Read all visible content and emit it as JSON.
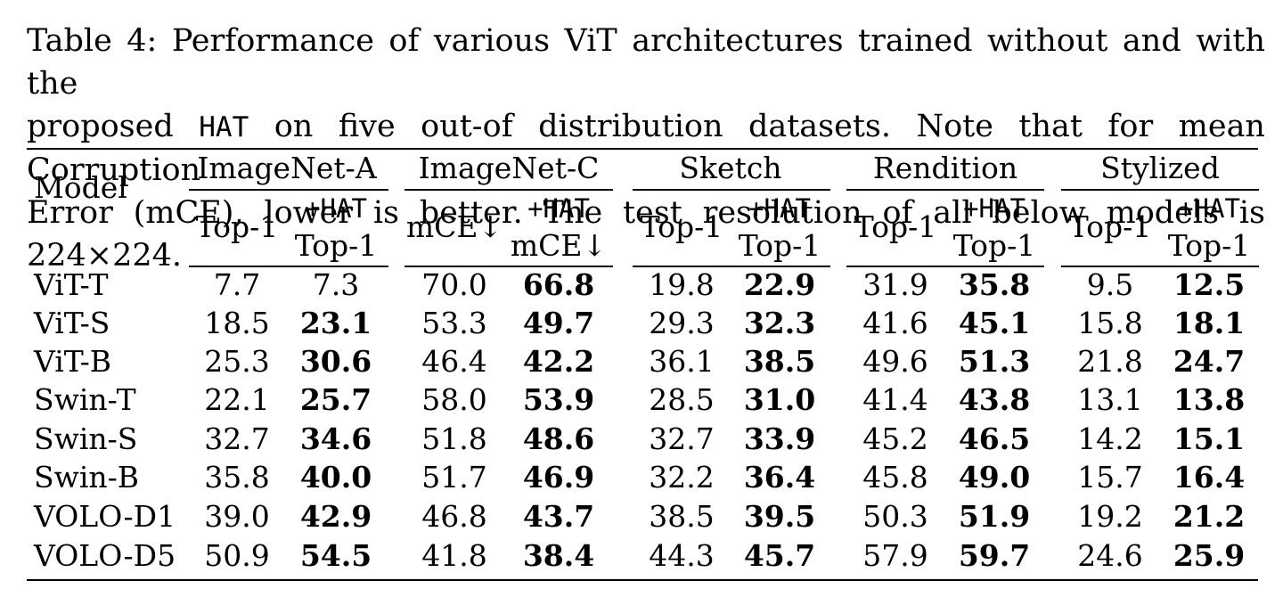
{
  "caption": {
    "line1": "Table 4: Performance of various ViT architectures trained without and with the",
    "line2_pre": "proposed",
    "line2_mono": "HAT",
    "line2_post": "on five out-of distribution datasets. Note that for mean Corruption",
    "line3": "Error (mCE), lower is better. The test resolution of all below models is 224×224."
  },
  "header": {
    "model": "Model",
    "groups": [
      "ImageNet-A",
      "ImageNet-C",
      "Sketch",
      "Rendition",
      "Stylized"
    ],
    "plus_hat": "+HAT",
    "top1": "Top-1",
    "mce": "mCE↓"
  },
  "rows": [
    {
      "model": "ViT-T",
      "values": [
        "7.7",
        "7.3",
        "70.0",
        "66.8",
        "19.8",
        "22.9",
        "31.9",
        "35.8",
        "9.5",
        "12.5"
      ]
    },
    {
      "model": "ViT-S",
      "values": [
        "18.5",
        "23.1",
        "53.3",
        "49.7",
        "29.3",
        "32.3",
        "41.6",
        "45.1",
        "15.8",
        "18.1"
      ]
    },
    {
      "model": "ViT-B",
      "values": [
        "25.3",
        "30.6",
        "46.4",
        "42.2",
        "36.1",
        "38.5",
        "49.6",
        "51.3",
        "21.8",
        "24.7"
      ]
    },
    {
      "model": "Swin-T",
      "values": [
        "22.1",
        "25.7",
        "58.0",
        "53.9",
        "28.5",
        "31.0",
        "41.4",
        "43.8",
        "13.1",
        "13.8"
      ]
    },
    {
      "model": "Swin-S",
      "values": [
        "32.7",
        "34.6",
        "51.8",
        "48.6",
        "32.7",
        "33.9",
        "45.2",
        "46.5",
        "14.2",
        "15.1"
      ]
    },
    {
      "model": "Swin-B",
      "values": [
        "35.8",
        "40.0",
        "51.7",
        "46.9",
        "32.2",
        "36.4",
        "45.8",
        "49.0",
        "15.7",
        "16.4"
      ]
    },
    {
      "model": "VOLO-D1",
      "values": [
        "39.0",
        "42.9",
        "46.8",
        "43.7",
        "38.5",
        "39.5",
        "50.3",
        "51.9",
        "19.2",
        "21.2"
      ]
    },
    {
      "model": "VOLO-D5",
      "values": [
        "50.9",
        "54.5",
        "41.8",
        "38.4",
        "44.3",
        "45.7",
        "57.9",
        "59.7",
        "24.6",
        "25.9"
      ]
    }
  ]
}
